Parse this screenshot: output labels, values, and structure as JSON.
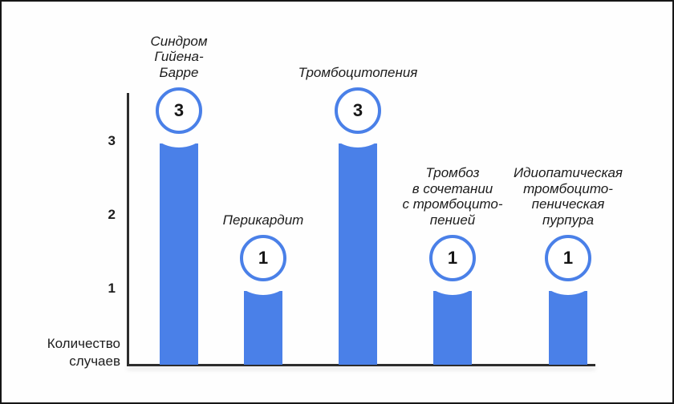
{
  "chart_data": {
    "type": "bar",
    "title": "",
    "xlabel": "",
    "ylabel": "Количество случаев",
    "ylabel_lines": [
      "Количество",
      "случаев"
    ],
    "yticks": [
      3,
      2,
      1
    ],
    "ylim": [
      0,
      3.7
    ],
    "grid": false,
    "legend": false,
    "bar_color": "#4a80e8",
    "axis_color": "#2d2d2d",
    "categories": [
      "Синдром Гийена-Барре",
      "Перикардит",
      "Тромбоцитопения",
      "Тромбоз в сочетании с тромбоцитопенией",
      "Идиопатическая тромбоцитопеническая пурпура"
    ],
    "values": [
      3,
      1,
      3,
      1,
      1
    ],
    "value_badges": [
      "3",
      "1",
      "3",
      "1",
      "1"
    ],
    "label_lines": [
      [
        "Синдром",
        "Гийена-",
        "Барре"
      ],
      [
        "Перикардит"
      ],
      [
        "Тромбоцитопения"
      ],
      [
        "Тромбоз",
        "в сочетании",
        "с тромбоцито-",
        "пенией"
      ],
      [
        "Идиопатическая",
        "тромбоцито-",
        "пеническая",
        "пурпура"
      ]
    ]
  }
}
